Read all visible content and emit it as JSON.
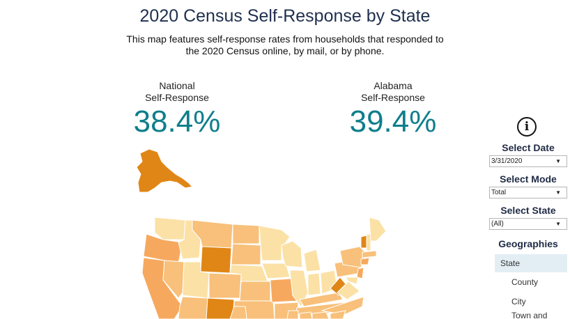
{
  "header": {
    "title": "2020 Census Self-Response by State",
    "subtitle": "This map features self-response rates from households that responded to the 2020 Census online, by mail, or by phone."
  },
  "stats": {
    "national": {
      "label_line1": "National",
      "label_line2": "Self-Response",
      "value": "38.4%"
    },
    "state": {
      "label_line1": "Alabama",
      "label_line2": "Self-Response",
      "value": "39.4%"
    }
  },
  "controls": {
    "info_icon": "info-icon",
    "date": {
      "label": "Select Date",
      "value": "3/31/2020"
    },
    "mode": {
      "label": "Select Mode",
      "value": "Total"
    },
    "state": {
      "label": "Select State",
      "value": "(All)"
    }
  },
  "geographies": {
    "title": "Geographies",
    "items": [
      "State",
      "County",
      "City",
      "Town and"
    ],
    "selected": "State"
  },
  "map": {
    "type": "choropleth",
    "colors": {
      "light": "#fbe1a6",
      "medium": "#f8c07a",
      "mid": "#f6a95e",
      "dark": "#e08616",
      "border": "#ffffff"
    }
  }
}
